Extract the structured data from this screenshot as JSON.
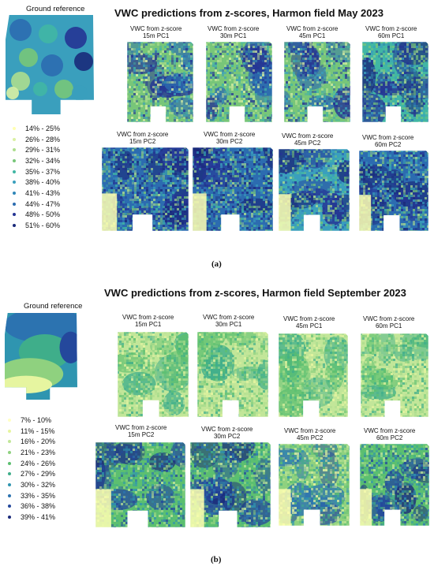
{
  "panels": [
    {
      "title": "VWC predictions from z-scores, Harmon field May 2023",
      "ground_reference_title": "Ground reference",
      "legend": [
        {
          "label": "14% - 25%",
          "color": "#ffffb2"
        },
        {
          "label": "26% - 28%",
          "color": "#d9f0a3"
        },
        {
          "label": "29% - 31%",
          "color": "#addd8e"
        },
        {
          "label": "32% - 34%",
          "color": "#78c679"
        },
        {
          "label": "35% - 37%",
          "color": "#41b6a4"
        },
        {
          "label": "38% - 40%",
          "color": "#3a9fbd"
        },
        {
          "label": "41% - 43%",
          "color": "#2f86b8"
        },
        {
          "label": "44% - 47%",
          "color": "#2c6cb0"
        },
        {
          "label": "48% - 50%",
          "color": "#253494"
        },
        {
          "label": "51% - 60%",
          "color": "#1a2a7a"
        }
      ],
      "maps_pc1": [
        {
          "line1": "VWC from z-score",
          "line2": "15m PC1"
        },
        {
          "line1": "VWC from z-score",
          "line2": "30m PC1"
        },
        {
          "line1": "VWC from z-score",
          "line2": "45m PC1"
        },
        {
          "line1": "VWC from z-score",
          "line2": "60m PC1"
        }
      ],
      "maps_pc2": [
        {
          "line1": "VWC from z-score",
          "line2": "15m PC2"
        },
        {
          "line1": "VWC from z-score",
          "line2": "30m PC2"
        },
        {
          "line1": "VWC from z-score",
          "line2": "45m PC2"
        },
        {
          "line1": "VWC from z-score",
          "line2": "60m PC2"
        }
      ],
      "caption": "(a)"
    },
    {
      "title": "VWC predictions from z-scores, Harmon field September 2023",
      "ground_reference_title": "Ground reference",
      "legend": [
        {
          "label": "7% - 10%",
          "color": "#ffffc5"
        },
        {
          "label": "11% - 15%",
          "color": "#e6f5a0"
        },
        {
          "label": "16% - 20%",
          "color": "#c2e699"
        },
        {
          "label": "21% - 23%",
          "color": "#8fd17f"
        },
        {
          "label": "24% - 26%",
          "color": "#5cbf70"
        },
        {
          "label": "27% - 29%",
          "color": "#3fae8a"
        },
        {
          "label": "30% - 32%",
          "color": "#2f95b0"
        },
        {
          "label": "33% - 35%",
          "color": "#2c73b0"
        },
        {
          "label": "36% - 38%",
          "color": "#24489c"
        },
        {
          "label": "39% - 41%",
          "color": "#1a2a7a"
        }
      ],
      "maps_pc1": [
        {
          "line1": "VWC from z-score",
          "line2": "15m PC1"
        },
        {
          "line1": "VWC from z-score",
          "line2": "30m PC1"
        },
        {
          "line1": "VWC from z-score",
          "line2": "45m PC1"
        },
        {
          "line1": "VWC from z-score",
          "line2": "60m PC1"
        }
      ],
      "maps_pc2": [
        {
          "line1": "VWC from z-score",
          "line2": "15m PC2"
        },
        {
          "line1": "VWC from z-score",
          "line2": "30m PC2"
        },
        {
          "line1": "VWC from z-score",
          "line2": "45m PC2"
        },
        {
          "line1": "VWC from z-score",
          "line2": "60m PC2"
        }
      ],
      "caption": "(b)"
    }
  ]
}
